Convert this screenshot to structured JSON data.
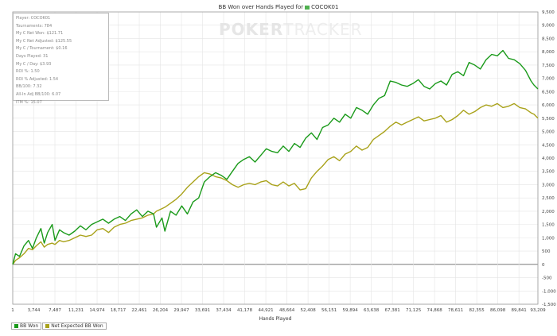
{
  "header": {
    "title_prefix": "BB Won over Hands Played for",
    "player_name": "COCOK01"
  },
  "watermark": {
    "text_a": "POKER",
    "text_b": "TRACKER"
  },
  "stats": {
    "rows": [
      "Player: COCOK01",
      "Tournaments: 784",
      "My C Net Won: $121.71",
      "My C Net Adjusted: $125.55",
      "My C / Tournament: $0.16",
      "Days Played: 31",
      "My C / Day: $3.93",
      "ROI %: 1.50",
      "ROI % Adjusted: 1.54",
      "BB/100: 7.32",
      "All-In Adj BB/100: 6.07",
      "ITM %: 15.07"
    ]
  },
  "chart_data": {
    "type": "line",
    "title": "BB Won over Hands Played for COCOK01",
    "xlabel": "Hands Played",
    "ylabel": "",
    "xlim": [
      1,
      93209
    ],
    "ylim": [
      -1500,
      9500
    ],
    "x_ticks": [
      "1",
      "3,744",
      "7,487",
      "11,231",
      "14,974",
      "18,717",
      "22,461",
      "26,204",
      "29,947",
      "33,691",
      "37,434",
      "41,178",
      "44,921",
      "48,664",
      "52,408",
      "56,151",
      "59,894",
      "63,638",
      "67,381",
      "71,125",
      "74,868",
      "78,611",
      "82,355",
      "86,098",
      "89,841",
      "93,209"
    ],
    "y_ticks": [
      "9,500",
      "9,000",
      "8,500",
      "8,000",
      "7,500",
      "7,000",
      "6,500",
      "6,000",
      "5,500",
      "5,000",
      "4,500",
      "4,000",
      "3,500",
      "3,000",
      "2,500",
      "2,000",
      "1,500",
      "1,000",
      "500",
      "0",
      "-500",
      "-1,000",
      "-1,500"
    ],
    "grid": true,
    "legend_position": "bottom-left",
    "series": [
      {
        "name": "BB Won",
        "color": "#1a9a1a",
        "x": [
          1,
          500,
          1200,
          2000,
          2800,
          3500,
          4200,
          5000,
          5600,
          6200,
          7000,
          7500,
          8300,
          9000,
          10000,
          11000,
          12000,
          13000,
          14000,
          15000,
          16000,
          17000,
          18000,
          19000,
          20000,
          21000,
          22000,
          23000,
          24000,
          25000,
          25500,
          26500,
          27000,
          28000,
          29000,
          30000,
          31000,
          32000,
          33000,
          34000,
          35000,
          36000,
          37000,
          38000,
          39000,
          40000,
          41000,
          42000,
          43000,
          44000,
          45000,
          46000,
          47000,
          48000,
          49000,
          50000,
          51000,
          52000,
          53000,
          54000,
          55000,
          56000,
          57000,
          58000,
          59000,
          60000,
          61000,
          62000,
          63000,
          64000,
          65000,
          66000,
          67000,
          68000,
          69000,
          70000,
          71000,
          72000,
          73000,
          74000,
          75000,
          76000,
          77000,
          78000,
          79000,
          80000,
          81000,
          82000,
          83000,
          84000,
          85000,
          86000,
          87000,
          88000,
          89000,
          90000,
          91000,
          92000,
          92500,
          93209
        ],
        "y": [
          0,
          400,
          300,
          700,
          900,
          600,
          1000,
          1350,
          800,
          1200,
          1500,
          900,
          1300,
          1200,
          1100,
          1250,
          1450,
          1300,
          1500,
          1600,
          1700,
          1550,
          1700,
          1800,
          1650,
          1900,
          2050,
          1800,
          2000,
          1900,
          1400,
          1750,
          1250,
          2000,
          1850,
          2200,
          1900,
          2350,
          2500,
          3100,
          3300,
          3450,
          3350,
          3200,
          3500,
          3800,
          3950,
          4050,
          3850,
          4100,
          4350,
          4250,
          4200,
          4450,
          4250,
          4550,
          4400,
          4750,
          4950,
          4700,
          5150,
          5250,
          5500,
          5350,
          5650,
          5500,
          5900,
          5800,
          5650,
          6000,
          6250,
          6350,
          6900,
          6850,
          6750,
          6700,
          6800,
          6950,
          6700,
          6600,
          6800,
          6900,
          6750,
          7150,
          7250,
          7100,
          7600,
          7500,
          7350,
          7700,
          7900,
          7850,
          8050,
          7750,
          7700,
          7550,
          7300,
          6900,
          6750,
          6600
        ]
      },
      {
        "name": "Net Expected BB Won",
        "color": "#a9a21a",
        "x": [
          1,
          500,
          1200,
          2000,
          2800,
          3500,
          4200,
          5000,
          5600,
          6200,
          7000,
          7500,
          8300,
          9000,
          10000,
          11000,
          12000,
          13000,
          14000,
          15000,
          16000,
          17000,
          18000,
          19000,
          20000,
          21000,
          22000,
          23000,
          24000,
          25000,
          25500,
          26500,
          27000,
          28000,
          29000,
          30000,
          31000,
          32000,
          33000,
          34000,
          35000,
          36000,
          37000,
          38000,
          39000,
          40000,
          41000,
          42000,
          43000,
          44000,
          45000,
          46000,
          47000,
          48000,
          49000,
          50000,
          51000,
          52000,
          53000,
          54000,
          55000,
          56000,
          57000,
          58000,
          59000,
          60000,
          61000,
          62000,
          63000,
          64000,
          65000,
          66000,
          67000,
          68000,
          69000,
          70000,
          71000,
          72000,
          73000,
          74000,
          75000,
          76000,
          77000,
          78000,
          79000,
          80000,
          81000,
          82000,
          83000,
          84000,
          85000,
          86000,
          87000,
          88000,
          89000,
          90000,
          91000,
          92000,
          92500,
          93209
        ],
        "y": [
          0,
          150,
          250,
          400,
          600,
          550,
          700,
          850,
          650,
          750,
          800,
          750,
          900,
          850,
          900,
          1000,
          1100,
          1050,
          1100,
          1300,
          1350,
          1200,
          1400,
          1500,
          1550,
          1650,
          1700,
          1750,
          1850,
          1900,
          2000,
          2100,
          2150,
          2300,
          2450,
          2650,
          2900,
          3100,
          3300,
          3450,
          3400,
          3300,
          3250,
          3150,
          3000,
          2900,
          3000,
          3050,
          3000,
          3100,
          3150,
          3000,
          2950,
          3100,
          2950,
          3050,
          2800,
          2850,
          3250,
          3500,
          3700,
          3950,
          4050,
          3900,
          4150,
          4250,
          4450,
          4300,
          4400,
          4700,
          4850,
          5000,
          5200,
          5350,
          5250,
          5350,
          5450,
          5550,
          5400,
          5450,
          5500,
          5600,
          5350,
          5450,
          5600,
          5800,
          5650,
          5750,
          5900,
          6000,
          5950,
          6050,
          5900,
          5950,
          6050,
          5900,
          5850,
          5700,
          5650,
          5500
        ]
      }
    ]
  },
  "legend": {
    "items": [
      "BB Won",
      "Net Expected BB Won"
    ]
  }
}
